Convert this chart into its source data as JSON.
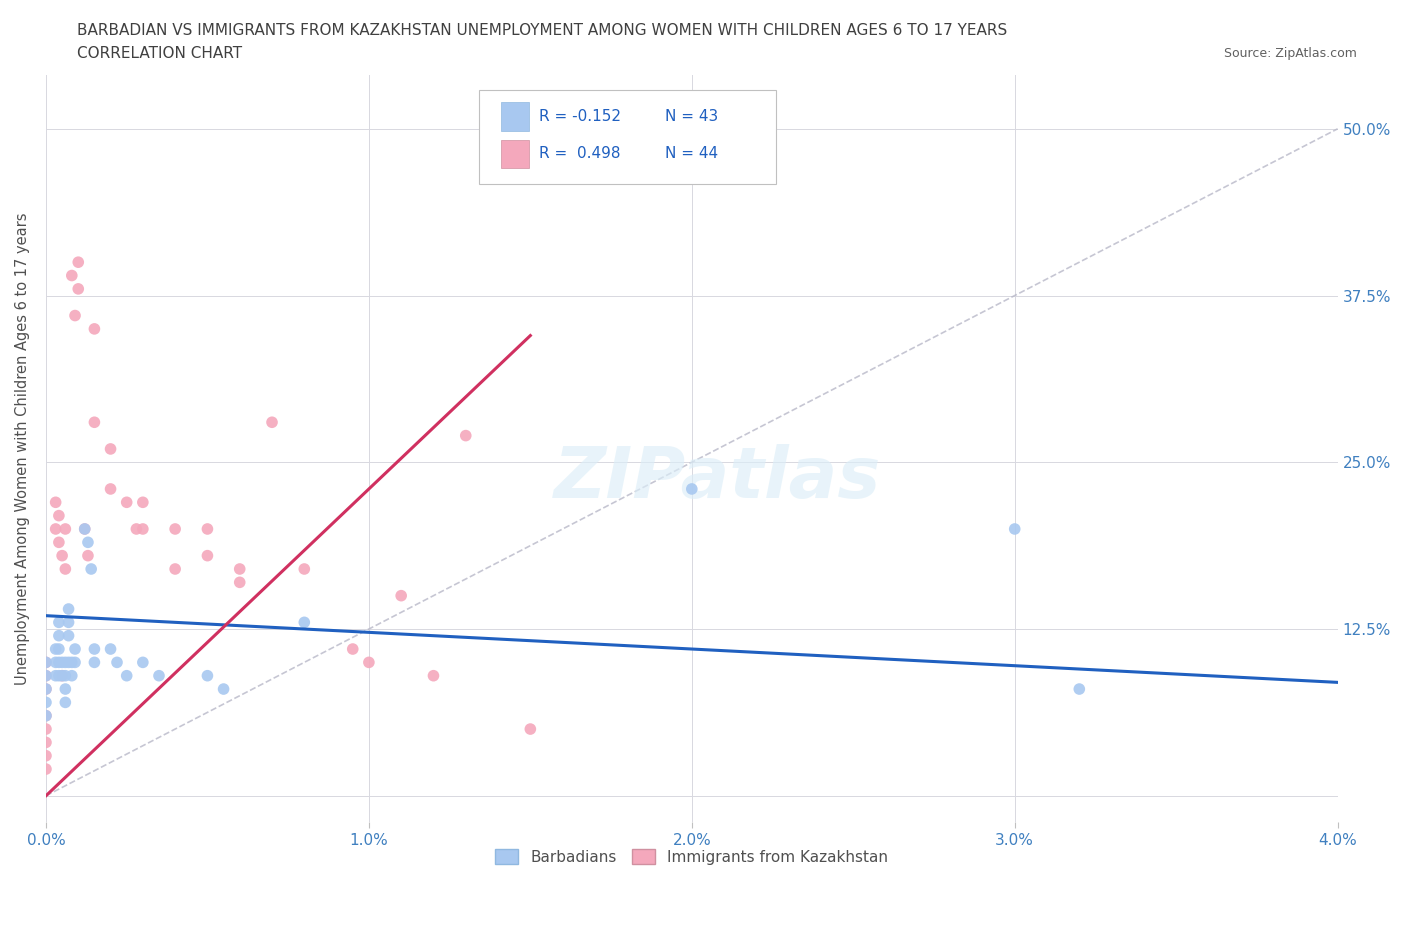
{
  "title_line1": "BARBADIAN VS IMMIGRANTS FROM KAZAKHSTAN UNEMPLOYMENT AMONG WOMEN WITH CHILDREN AGES 6 TO 17 YEARS",
  "title_line2": "CORRELATION CHART",
  "source": "Source: ZipAtlas.com",
  "ylabel": "Unemployment Among Women with Children Ages 6 to 17 years",
  "xlim": [
    0.0,
    0.04
  ],
  "ylim": [
    -0.02,
    0.54
  ],
  "xticks": [
    0.0,
    0.01,
    0.02,
    0.03,
    0.04
  ],
  "xticklabels": [
    "0.0%",
    "1.0%",
    "2.0%",
    "3.0%",
    "4.0%"
  ],
  "yticks": [
    0.0,
    0.125,
    0.25,
    0.375,
    0.5
  ],
  "yticklabels": [
    "",
    "12.5%",
    "25.0%",
    "37.5%",
    "50.0%"
  ],
  "barbadian_color": "#a8c8f0",
  "kazakhstan_color": "#f4a8bc",
  "barbadian_line_color": "#2060c0",
  "kazakhstan_line_color": "#d03060",
  "diagonal_color": "#b8b8c8",
  "watermark": "ZIPatlas",
  "legend_R_barbadian": "R = -0.152",
  "legend_N_barbadian": "N = 43",
  "legend_R_kazakhstan": "R =  0.498",
  "legend_N_kazakhstan": "N = 44",
  "barbadian_x": [
    0.0,
    0.0,
    0.0,
    0.0,
    0.0,
    0.0003,
    0.0003,
    0.0003,
    0.0004,
    0.0004,
    0.0004,
    0.0004,
    0.0004,
    0.0005,
    0.0005,
    0.0006,
    0.0006,
    0.0006,
    0.0006,
    0.0007,
    0.0007,
    0.0007,
    0.0007,
    0.0008,
    0.0008,
    0.0009,
    0.0009,
    0.0012,
    0.0013,
    0.0014,
    0.0015,
    0.0015,
    0.002,
    0.0022,
    0.0025,
    0.003,
    0.0035,
    0.005,
    0.0055,
    0.008,
    0.02,
    0.03,
    0.032
  ],
  "barbadian_y": [
    0.1,
    0.09,
    0.08,
    0.07,
    0.06,
    0.11,
    0.1,
    0.09,
    0.13,
    0.12,
    0.11,
    0.1,
    0.09,
    0.1,
    0.09,
    0.1,
    0.09,
    0.08,
    0.07,
    0.14,
    0.13,
    0.12,
    0.1,
    0.1,
    0.09,
    0.11,
    0.1,
    0.2,
    0.19,
    0.17,
    0.11,
    0.1,
    0.11,
    0.1,
    0.09,
    0.1,
    0.09,
    0.09,
    0.08,
    0.13,
    0.23,
    0.2,
    0.08
  ],
  "kazakhstan_x": [
    0.0,
    0.0,
    0.0,
    0.0,
    0.0,
    0.0,
    0.0,
    0.0,
    0.0003,
    0.0003,
    0.0004,
    0.0004,
    0.0005,
    0.0005,
    0.0006,
    0.0006,
    0.0008,
    0.0009,
    0.001,
    0.001,
    0.0012,
    0.0013,
    0.0015,
    0.0015,
    0.002,
    0.002,
    0.0025,
    0.0028,
    0.003,
    0.003,
    0.004,
    0.004,
    0.005,
    0.005,
    0.006,
    0.006,
    0.007,
    0.008,
    0.0095,
    0.01,
    0.011,
    0.012,
    0.013,
    0.015
  ],
  "kazakhstan_y": [
    0.1,
    0.09,
    0.08,
    0.06,
    0.05,
    0.04,
    0.03,
    0.02,
    0.22,
    0.2,
    0.21,
    0.19,
    0.18,
    0.09,
    0.2,
    0.17,
    0.39,
    0.36,
    0.4,
    0.38,
    0.2,
    0.18,
    0.35,
    0.28,
    0.26,
    0.23,
    0.22,
    0.2,
    0.22,
    0.2,
    0.2,
    0.17,
    0.2,
    0.18,
    0.17,
    0.16,
    0.28,
    0.17,
    0.11,
    0.1,
    0.15,
    0.09,
    0.27,
    0.05
  ],
  "grid_color": "#d8d8e0",
  "bg_color": "#ffffff",
  "tick_color": "#4080c0",
  "title_color": "#404040",
  "marker_size": 70
}
